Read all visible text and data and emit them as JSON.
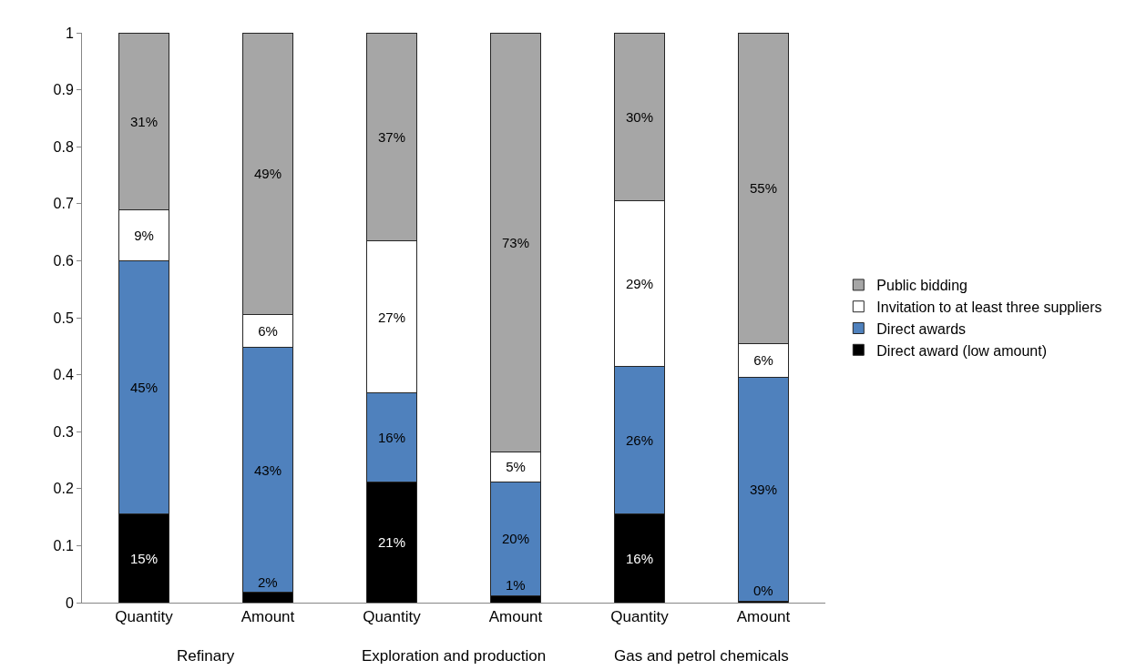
{
  "chart_data": {
    "type": "bar",
    "stacked": true,
    "categories": [
      "Quantity",
      "Amount",
      "Quantity",
      "Amount",
      "Quantity",
      "Amount"
    ],
    "annotations": [
      "Refinary",
      "Exploration and production",
      "Gas and petrol chemicals"
    ],
    "ylim": [
      0,
      1
    ],
    "yticks": [
      0,
      0.1,
      0.2,
      0.3,
      0.4,
      0.5,
      0.6,
      0.7,
      0.8,
      0.9,
      1
    ],
    "grid": false,
    "legend": "right",
    "series": [
      {
        "name": "Direct award (low amount)",
        "color": "#000000",
        "values": [
          0.155,
          0.018,
          0.212,
          0.012,
          0.155,
          0.003
        ],
        "value_labels": [
          "15%",
          "2%",
          "21%",
          "1%",
          "16%",
          "0%"
        ]
      },
      {
        "name": "Direct awards",
        "color": "#4f81bd",
        "values": [
          0.445,
          0.43,
          0.156,
          0.2,
          0.259,
          0.393
        ],
        "value_labels": [
          "45%",
          "43%",
          "16%",
          "20%",
          "26%",
          "39%"
        ]
      },
      {
        "name": "Invitation to at least three suppliers",
        "color": "#ffffff",
        "values": [
          0.09,
          0.058,
          0.267,
          0.053,
          0.291,
          0.058
        ],
        "value_labels": [
          "9%",
          "6%",
          "27%",
          "5%",
          "29%",
          "6%"
        ]
      },
      {
        "name": "Public bidding",
        "color": "#a6a6a6",
        "values": [
          0.31,
          0.494,
          0.365,
          0.735,
          0.295,
          0.546
        ],
        "value_labels": [
          "31%",
          "49%",
          "37%",
          "73%",
          "30%",
          "55%"
        ]
      }
    ]
  }
}
